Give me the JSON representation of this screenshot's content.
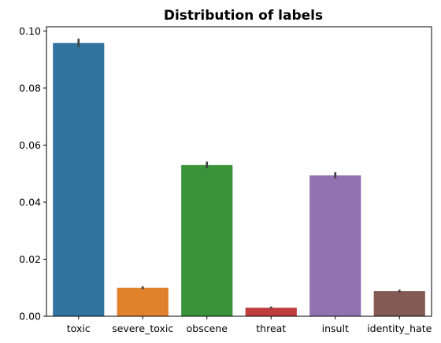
{
  "chart_data": {
    "type": "bar",
    "title": "Distribution of labels",
    "xlabel": "",
    "ylabel": "",
    "categories": [
      "toxic",
      "severe_toxic",
      "obscene",
      "threat",
      "insult",
      "identity_hate"
    ],
    "values": [
      0.0958,
      0.01,
      0.053,
      0.003,
      0.0494,
      0.0088
    ],
    "error_low": [
      0.0944,
      0.0095,
      0.0519,
      0.0027,
      0.0483,
      0.0083
    ],
    "error_high": [
      0.0973,
      0.0105,
      0.0542,
      0.0034,
      0.0505,
      0.0093
    ],
    "colors": [
      "#3274a1",
      "#e1812c",
      "#3a923a",
      "#c03d3e",
      "#9372b2",
      "#845b53"
    ],
    "error_color": "#424242",
    "ylim": [
      0,
      0.1015
    ],
    "yticks": [
      0.0,
      0.02,
      0.04,
      0.06,
      0.08,
      0.1
    ],
    "ytick_labels": [
      "0.00",
      "0.02",
      "0.04",
      "0.06",
      "0.08",
      "0.10"
    ],
    "grid": false
  }
}
